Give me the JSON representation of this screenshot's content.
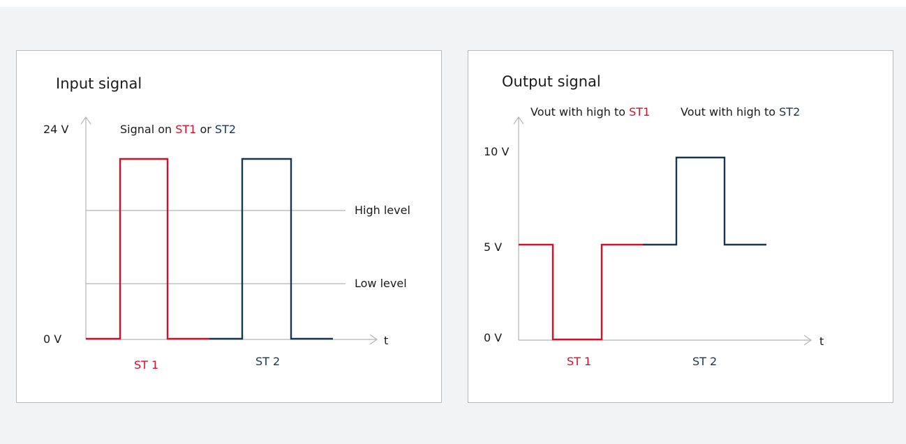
{
  "panels": [
    {
      "title": "Input signal",
      "y_labels": [
        "24 V",
        "0 V"
      ],
      "x_label": "t",
      "legend": {
        "prefix": "Signal on ",
        "st1": "ST1",
        "mid": " or ",
        "st2": "ST2"
      },
      "levels": [
        "High level",
        "Low level"
      ],
      "channels": [
        "ST 1",
        "ST 2"
      ]
    },
    {
      "title": "Output signal",
      "y_labels": [
        "10 V",
        "5 V",
        "0 V"
      ],
      "x_label": "t",
      "legend": [
        {
          "prefix": "Vout with high to ",
          "name": "ST1"
        },
        {
          "prefix": "Vout with high to ",
          "name": "ST2"
        }
      ],
      "channels": [
        "ST 1",
        "ST 2"
      ]
    }
  ]
}
